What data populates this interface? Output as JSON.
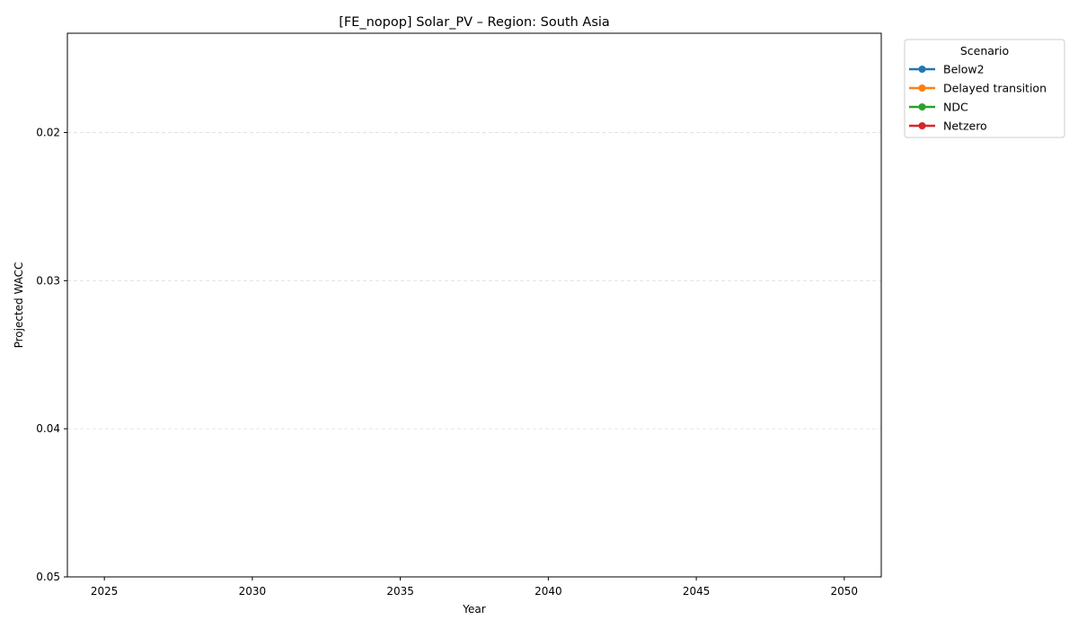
{
  "chart_data": {
    "type": "line",
    "title": "[FE_nopop] Solar_PV – Region: South Asia",
    "xlabel": "Year",
    "ylabel": "Projected WACC",
    "x_ticks": [
      "2025",
      "2030",
      "2035",
      "2040",
      "2045",
      "2050"
    ],
    "xlim": [
      2023.75,
      2051.25
    ],
    "y_ticks": [
      "0.02",
      "0.03",
      "0.04",
      "0.05"
    ],
    "ylim": [
      0.05,
      0.0133
    ],
    "y_inverted": true,
    "grid": "y-dashed",
    "legend_title": "Scenario",
    "legend_position": "outside-top-right",
    "series": [
      {
        "name": "Below2",
        "color": "#1f77b4",
        "x": [],
        "y": []
      },
      {
        "name": "Delayed transition",
        "color": "#ff7f0e",
        "x": [],
        "y": []
      },
      {
        "name": "NDC",
        "color": "#2ca02c",
        "x": [],
        "y": []
      },
      {
        "name": "Netzero",
        "color": "#d62728",
        "x": [],
        "y": []
      }
    ]
  }
}
